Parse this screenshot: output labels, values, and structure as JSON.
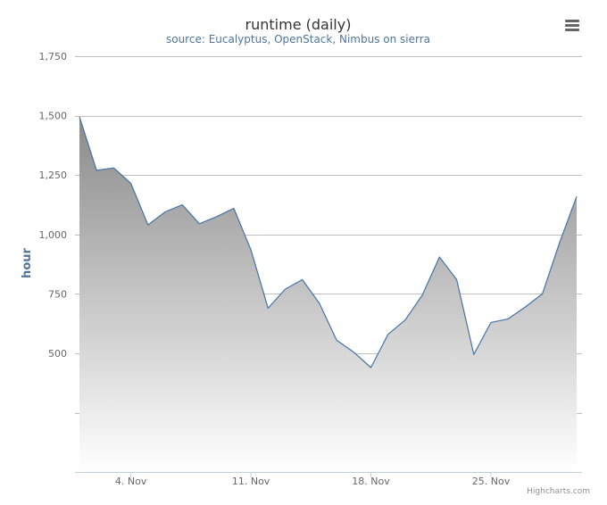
{
  "chart_data": {
    "type": "area",
    "title": "runtime (daily)",
    "subtitle": "source: Eucalyptus, OpenStack, Nimbus on sierra",
    "ylabel": "hour",
    "xlabel": "",
    "ylim": [
      0,
      1750
    ],
    "yticks": [
      500,
      750,
      1000,
      1250,
      1500,
      1750
    ],
    "ytick_labels": [
      "500",
      "750",
      "1,000",
      "1,250",
      "1,500",
      "1,750"
    ],
    "xticks": [
      "2013-11-04",
      "2013-11-11",
      "2013-11-18",
      "2013-11-25"
    ],
    "xtick_labels": [
      "4. Nov",
      "11. Nov",
      "18. Nov",
      "25. Nov"
    ],
    "grid": true,
    "legend": "none",
    "series": [
      {
        "x": [
          "2013-11-01",
          "2013-11-02",
          "2013-11-03",
          "2013-11-04",
          "2013-11-05",
          "2013-11-06",
          "2013-11-07",
          "2013-11-08",
          "2013-11-09",
          "2013-11-10",
          "2013-11-11",
          "2013-11-12",
          "2013-11-13",
          "2013-11-14",
          "2013-11-15",
          "2013-11-16",
          "2013-11-17",
          "2013-11-18",
          "2013-11-19",
          "2013-11-20",
          "2013-11-21",
          "2013-11-22",
          "2013-11-23",
          "2013-11-24",
          "2013-11-25",
          "2013-11-26",
          "2013-11-27",
          "2013-11-28",
          "2013-11-29",
          "2013-11-30"
        ],
        "values": [
          1495,
          1270,
          1280,
          1215,
          1040,
          1095,
          1125,
          1045,
          1075,
          1110,
          935,
          690,
          770,
          810,
          710,
          555,
          505,
          440,
          580,
          640,
          745,
          905,
          810,
          495,
          630,
          645,
          695,
          750,
          965,
          1160
        ]
      }
    ],
    "colors": {
      "line": "#4572a7",
      "fill_top": "#8a8a8a",
      "fill_bottom": "#ffffff"
    },
    "credits": "Highcharts.com",
    "menu_icon": "hamburger-menu-icon"
  }
}
